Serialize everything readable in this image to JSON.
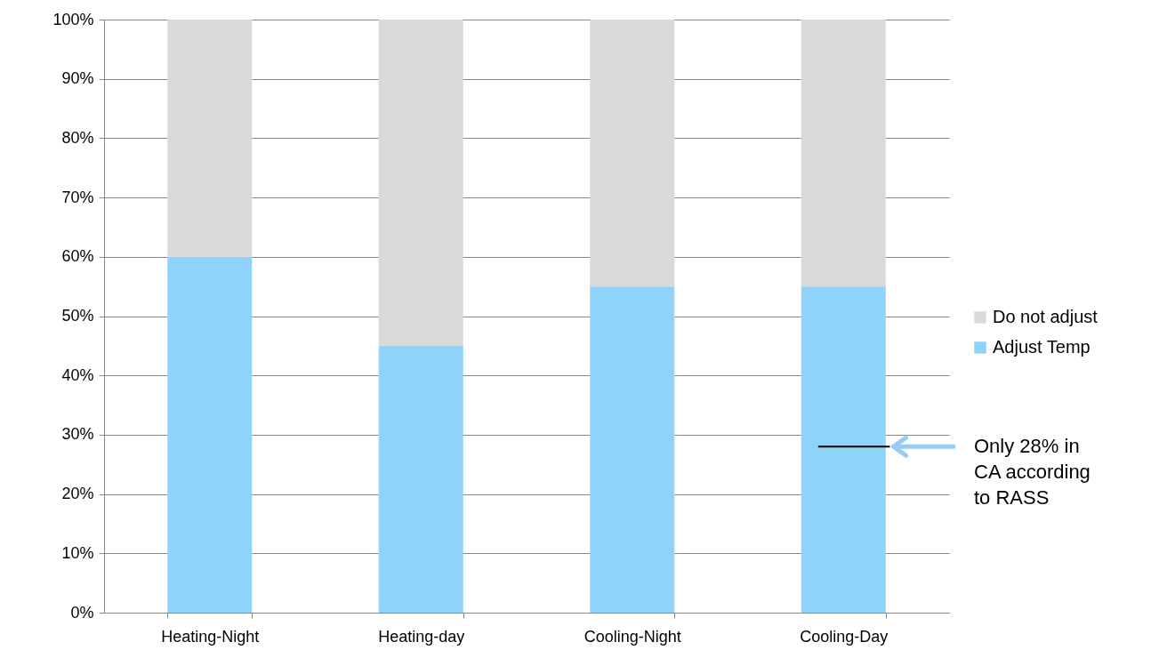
{
  "chart_data": {
    "type": "bar",
    "stacked": true,
    "categories": [
      "Heating-Night",
      "Heating-day",
      "Cooling-Night",
      "Cooling-Day"
    ],
    "series": [
      {
        "name": "Adjust Temp",
        "color": "#8fd3fa",
        "values": [
          60,
          45,
          55,
          55
        ]
      },
      {
        "name": "Do not adjust",
        "color": "#d9d9d9",
        "values": [
          40,
          55,
          45,
          45
        ]
      }
    ],
    "ylim": [
      0,
      100
    ],
    "yticks": [
      {
        "value": 0,
        "label": "0%"
      },
      {
        "value": 10,
        "label": "10%"
      },
      {
        "value": 20,
        "label": "20%"
      },
      {
        "value": 30,
        "label": "30%"
      },
      {
        "value": 40,
        "label": "40%"
      },
      {
        "value": 50,
        "label": "50%"
      },
      {
        "value": 60,
        "label": "60%"
      },
      {
        "value": 70,
        "label": "70%"
      },
      {
        "value": 80,
        "label": "80%"
      },
      {
        "value": 90,
        "label": "90%"
      },
      {
        "value": 100,
        "label": "100%"
      }
    ],
    "grid": "y",
    "legend": "right",
    "ref_lines": [
      {
        "axis": "y",
        "value": 28,
        "color": "#000000"
      }
    ],
    "annotations": [
      "Only 28% in CA according to RASS"
    ]
  }
}
